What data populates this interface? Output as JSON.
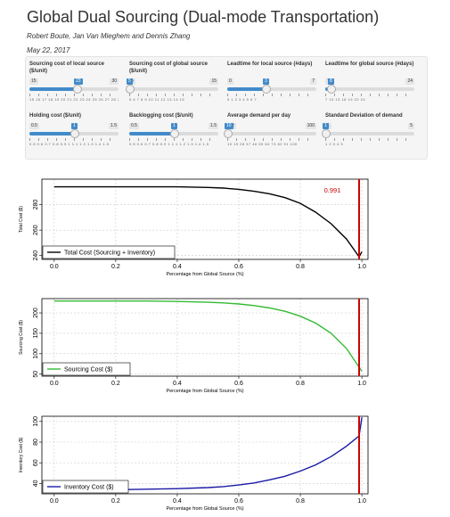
{
  "header": {
    "title": "Global Dual Sourcing (Dual-mode Transportation)",
    "authors": "Robert Boute, Jan Van Mieghem and Dennis Zhang",
    "date": "May 22, 2017"
  },
  "sliders": [
    {
      "label": "Sourcing cost of local source ($/unit)",
      "min": "15",
      "max": "30",
      "value": "23",
      "fraction": 0.53,
      "ticks": "15 16 17 18 19 20 21 22 23 24 25 26 27 28 29 30"
    },
    {
      "label": "Sourcing cost of global source ($/unit)",
      "min": "5",
      "max": "15",
      "value": "5",
      "fraction": 0.0,
      "ticks": "5 6 7 8 9 10 11 12 13 14 15"
    },
    {
      "label": "Leadtime for local source (#days)",
      "min": "0",
      "max": "7",
      "value": "3",
      "fraction": 0.43,
      "ticks": "0 1 2 3 4 5 6 7"
    },
    {
      "label": "Leadtime for global source (#days)",
      "min": "7",
      "max": "24",
      "value": "8",
      "fraction": 0.06,
      "ticks": "7 10 13 16 19 22 24"
    },
    {
      "label": "Holding cost ($/unit)",
      "min": "0.5",
      "max": "1.5",
      "value": "1",
      "fraction": 0.5,
      "ticks": "0.5 0.6 0.7 0.8 0.9 1 1.1 1.2 1.3 1.4 1.5"
    },
    {
      "label": "Backlogging cost ($/unit)",
      "min": "0.5",
      "max": "1.5",
      "value": "1",
      "fraction": 0.5,
      "ticks": "0.5 0.6 0.7 0.8 0.9 1 1.1 1.2 1.3 1.4 1.5"
    },
    {
      "label": "Average demand per day",
      "min": "10",
      "max": "100",
      "value": "10",
      "fraction": 0.0,
      "ticks": "10 19 28 37 46 55 64 73 82 91 100"
    },
    {
      "label": "Standard Deviation of demand",
      "min": "1",
      "max": "5",
      "value": "1",
      "fraction": 0.0,
      "ticks": "1 2 3 4 5"
    }
  ],
  "chart_data": [
    {
      "type": "line",
      "xlabel": "Percentage from Global Source (%)",
      "ylabel": "Total Cost ($)",
      "xlim": [
        -0.04,
        1.02
      ],
      "ylim": [
        237,
        300
      ],
      "x_ticks": [
        "0.0",
        "0.2",
        "0.4",
        "0.6",
        "0.8",
        "1.0"
      ],
      "y_ticks": [
        240,
        260,
        280
      ],
      "x": [
        0,
        0.1,
        0.2,
        0.3,
        0.4,
        0.5,
        0.55,
        0.6,
        0.65,
        0.7,
        0.75,
        0.8,
        0.85,
        0.9,
        0.95,
        0.991,
        1.0
      ],
      "series": [
        {
          "name": "Total Cost (Sourcing + Inventory)",
          "color": "#000000",
          "values": [
            294,
            294,
            294,
            294,
            294,
            293.5,
            293,
            292,
            290.5,
            288.5,
            285.5,
            281,
            274,
            265,
            253,
            239,
            243
          ]
        }
      ],
      "vline": {
        "x": 0.991,
        "label": "0.991",
        "color": "#cc0000"
      }
    },
    {
      "type": "line",
      "xlabel": "Percentage from Global Source (%)",
      "ylabel": "Sourcing Cost ($)",
      "xlim": [
        -0.04,
        1.02
      ],
      "ylim": [
        45,
        235
      ],
      "x_ticks": [
        "0.0",
        "0.2",
        "0.4",
        "0.6",
        "0.8",
        "1.0"
      ],
      "y_ticks": [
        50,
        100,
        150,
        200
      ],
      "x": [
        0,
        0.1,
        0.2,
        0.3,
        0.4,
        0.5,
        0.55,
        0.6,
        0.65,
        0.7,
        0.75,
        0.8,
        0.85,
        0.9,
        0.95,
        1.0
      ],
      "series": [
        {
          "name": "Sourcing Cost ($)",
          "color": "#33bb33",
          "values": [
            229,
            229,
            229,
            229,
            228,
            226,
            224.5,
            222,
            218,
            212,
            204,
            192,
            175,
            150,
            113,
            57
          ]
        }
      ],
      "vline": {
        "x": 0.991,
        "color": "#cc0000"
      }
    },
    {
      "type": "line",
      "xlabel": "Percentage from Global Source (%)",
      "ylabel": "Inventory Cost ($)",
      "xlim": [
        -0.04,
        1.02
      ],
      "ylim": [
        30,
        105
      ],
      "x_ticks": [
        "0.0",
        "0.2",
        "0.4",
        "0.6",
        "0.8",
        "1.0"
      ],
      "y_ticks": [
        40,
        60,
        80,
        100
      ],
      "x": [
        0,
        0.1,
        0.2,
        0.3,
        0.4,
        0.5,
        0.55,
        0.6,
        0.65,
        0.7,
        0.75,
        0.8,
        0.85,
        0.9,
        0.95,
        0.991,
        1.0
      ],
      "series": [
        {
          "name": "Inventory Cost ($)",
          "color": "#1a1aa6",
          "values": [
            34,
            34,
            34,
            34.5,
            35,
            36,
            37,
            38.5,
            40.5,
            43.5,
            47,
            52,
            58,
            66,
            76,
            86,
            104
          ]
        }
      ],
      "vline": {
        "x": 0.991,
        "color": "#cc0000"
      }
    }
  ]
}
